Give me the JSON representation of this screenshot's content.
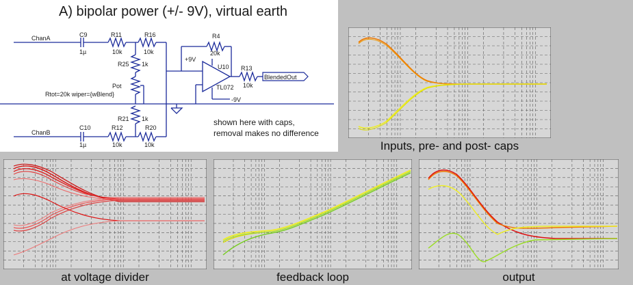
{
  "schematic": {
    "title": "A) bipolar power (+/- 9V), virtual earth",
    "note_line1": "shown here with caps,",
    "note_line2": "removal makes no difference",
    "labels": {
      "chanA": "ChanA",
      "chanB": "ChanB",
      "c9": "C9",
      "c9v": "1µ",
      "c10": "C10",
      "c10v": "1µ",
      "r11": "R11",
      "r11v": "10k",
      "r16": "R16",
      "r16v": "10k",
      "r12": "R12",
      "r12v": "10k",
      "r20": "R20",
      "r20v": "10k",
      "r25": "R25",
      "r25v": "1k",
      "r21": "R21",
      "r21v": "1k",
      "pot": "Pot",
      "pot_params": "Rtot=20k wiper={wBlend}",
      "r4": "R4",
      "r4v": "20k",
      "r13": "R13",
      "r13v": "10k",
      "u10": "U10",
      "tl072": "TL072",
      "vpos": "+9V",
      "vneg": "-9V",
      "out": "BlendedOut"
    }
  },
  "plots": {
    "inputs": {
      "caption": "Inputs, pre- and post- caps"
    },
    "divider": {
      "caption": "at voltage divider"
    },
    "feedback": {
      "caption": "feedback loop"
    },
    "output": {
      "caption": "output"
    }
  },
  "colors": {
    "red": "#dd1111",
    "orange": "#ee7700",
    "yellow": "#eeee22",
    "green": "#77cc22",
    "grid": "#5a5a5a",
    "bg": "#d7d7d7"
  }
}
